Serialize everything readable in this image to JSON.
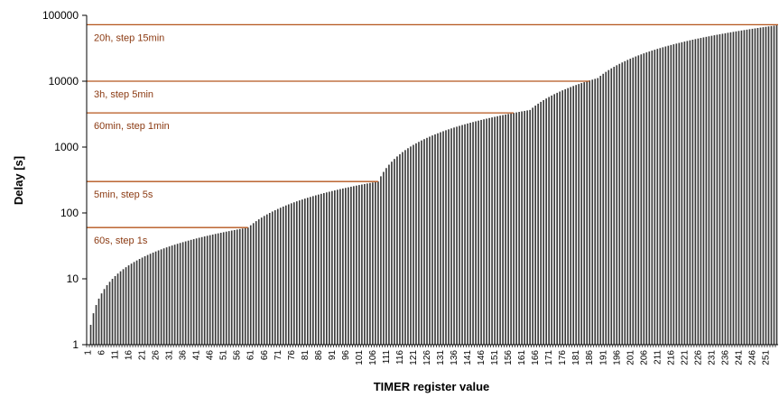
{
  "chart_data": {
    "type": "bar",
    "title": "",
    "xlabel": "TIMER register value",
    "ylabel": "Delay [s]",
    "y_scale": "log",
    "ylim": [
      1,
      100000
    ],
    "y_ticks": [
      "1",
      "10",
      "100",
      "1000",
      "10000",
      "100000"
    ],
    "y_tick_values": [
      1,
      10,
      100,
      1000,
      10000,
      100000
    ],
    "x_range": [
      1,
      255
    ],
    "x_tick_labels": [
      "1",
      "6",
      "11",
      "16",
      "21",
      "26",
      "31",
      "36",
      "41",
      "46",
      "51",
      "56",
      "61",
      "66",
      "71",
      "76",
      "81",
      "86",
      "91",
      "96",
      "101",
      "106",
      "111",
      "116",
      "121",
      "126",
      "131",
      "136",
      "141",
      "146",
      "151",
      "156",
      "161",
      "166",
      "171",
      "176",
      "181",
      "186",
      "191",
      "196",
      "201",
      "206",
      "211",
      "216",
      "221",
      "226",
      "231",
      "236",
      "241",
      "246",
      "251"
    ],
    "bar_color": "#3a3a3a",
    "annotation_color": "#b5561d",
    "segments": [
      {
        "from_register": 1,
        "to_register": 60,
        "start_delay": 1,
        "step_seconds": 1,
        "max_delay": 60
      },
      {
        "from_register": 61,
        "to_register": 108,
        "start_delay": 65,
        "step_seconds": 5,
        "max_delay": 300
      },
      {
        "from_register": 109,
        "to_register": 164,
        "start_delay": 360,
        "step_seconds": 60,
        "max_delay": 3660
      },
      {
        "from_register": 165,
        "to_register": 189,
        "start_delay": 3960,
        "step_seconds": 300,
        "max_delay": 11160
      },
      {
        "from_register": 190,
        "to_register": 255,
        "start_delay": 12060,
        "step_seconds": 900,
        "max_delay": 70560
      }
    ],
    "annotations": [
      {
        "label": "60s, step 1s",
        "value": 60
      },
      {
        "label": "5min, step 5s",
        "value": 300
      },
      {
        "label": "60min, step 1min",
        "value": 3300
      },
      {
        "label": "3h, step 5min",
        "value": 10000
      },
      {
        "label": "20h, step 15min",
        "value": 72000
      }
    ],
    "grid": false,
    "legend": "none"
  }
}
